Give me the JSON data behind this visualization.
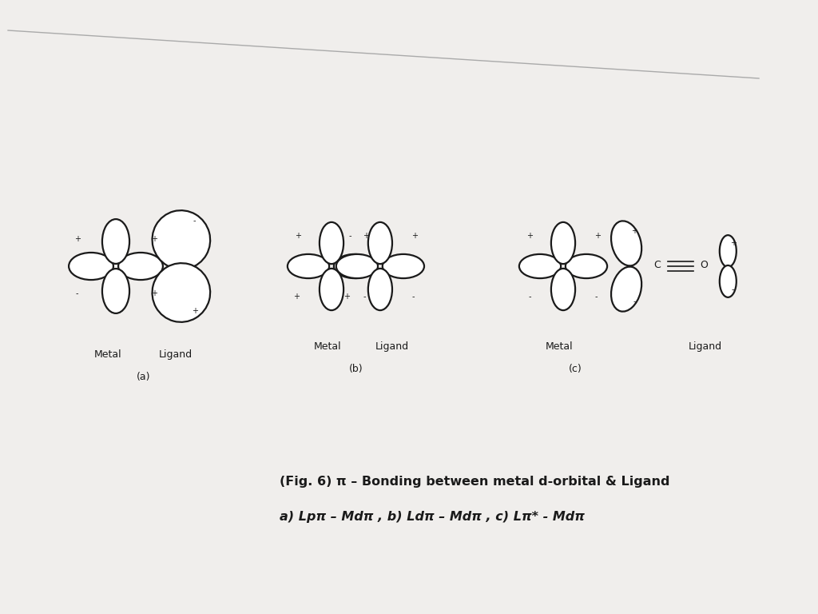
{
  "bg_color": "#f0eeec",
  "line_color": "#1a1a1a",
  "lw": 1.6,
  "caption_line1": "(Fig. 6) π – Bonding between metal d-orbital & Ligand",
  "caption_line2": "a) Lpπ – Mdπ , b) Ldπ – Mdπ , c) Lπ* - Mdπ",
  "panels": [
    "(a)",
    "(b)",
    "(c)"
  ]
}
